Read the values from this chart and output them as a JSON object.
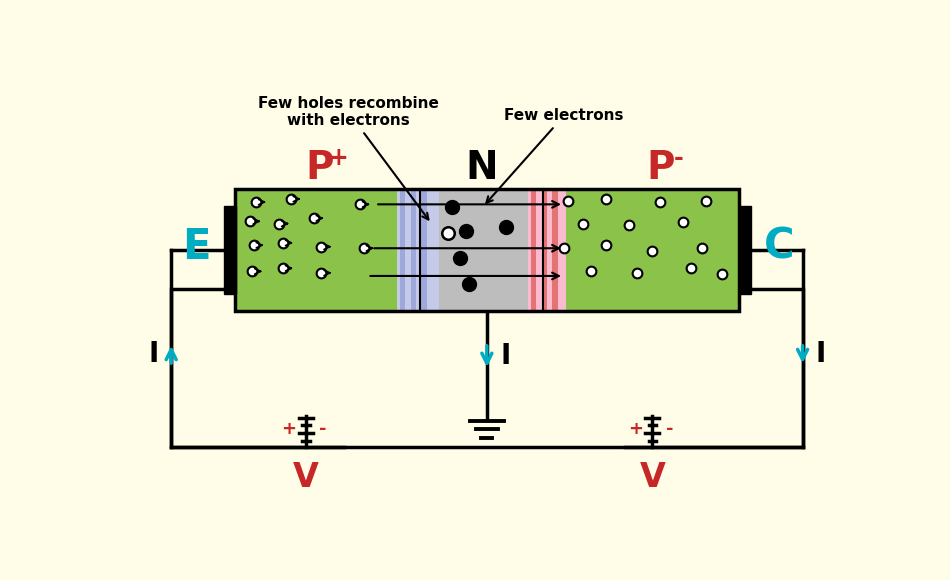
{
  "bg_color": "#fffde7",
  "emitter_color": "#8bc34a",
  "collector_color": "#8bc34a",
  "base_color": "#bdbdbd",
  "depletion_left_color": "#c5cae9",
  "depletion_right_color": "#f8bbd0",
  "stripe_left_color": "#9fa8da",
  "stripe_right_color": "#e57373",
  "P_plus_label": "P",
  "P_plus_sup": "+",
  "N_label": "N",
  "P_minus_label": "P",
  "P_minus_sup": "-",
  "E_label": "E",
  "C_label": "C",
  "I_label": "I",
  "V_label": "V",
  "label_color_red": "#c62828",
  "label_color_cyan": "#00acc1",
  "annotation1": "Few holes recombine\nwith electrons",
  "annotation2": "Few electrons",
  "arrow_color": "#00acc1",
  "circuit_fill": "#fffde7"
}
